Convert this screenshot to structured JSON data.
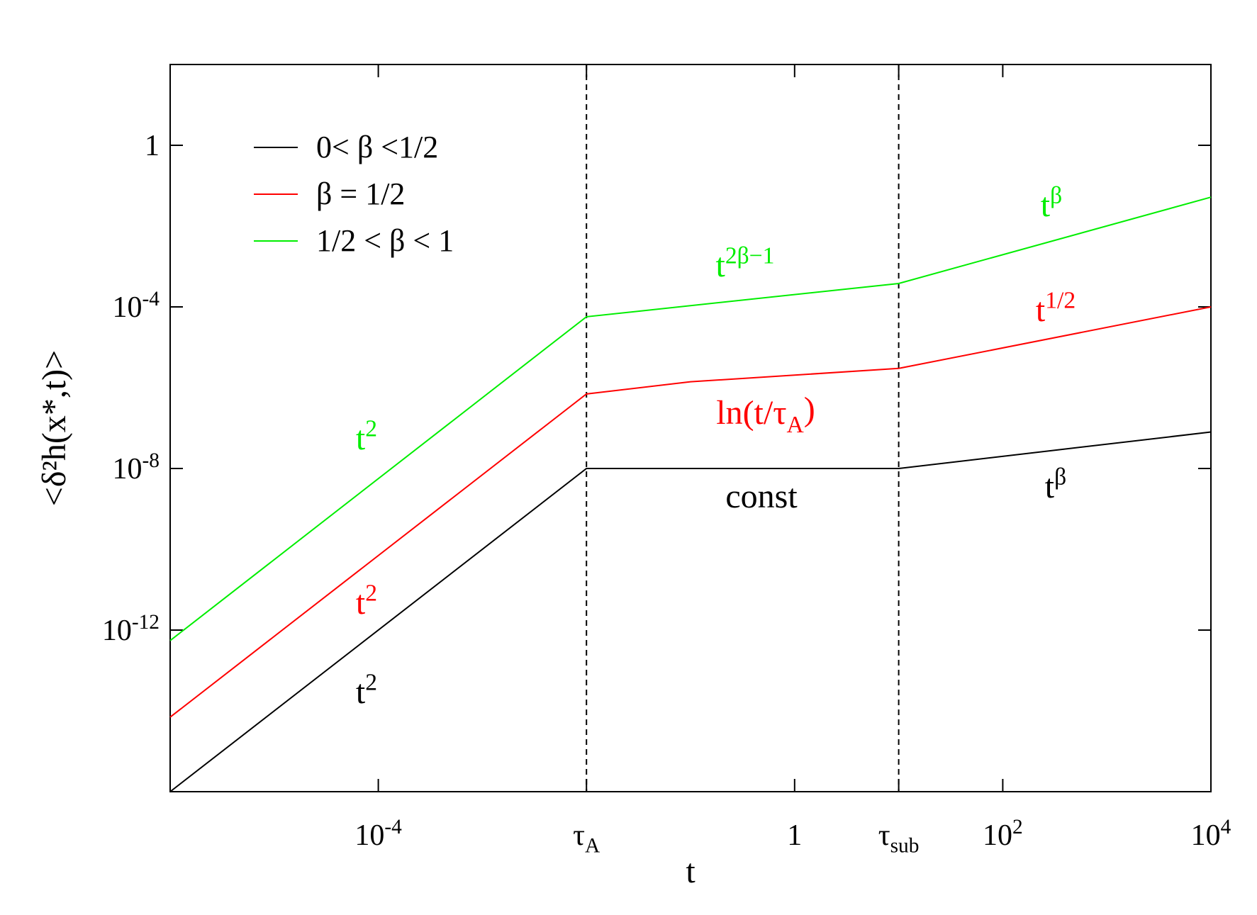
{
  "chart_data": {
    "type": "line",
    "x_label": "t",
    "y_label": "<δ²h(x*,t)>",
    "xlog": true,
    "ylog": true,
    "xlim": [
      1e-06,
      10000.0
    ],
    "ylim": [
      1e-16,
      100
    ],
    "xticks": [
      {
        "value": 0.0001,
        "label": "10",
        "sup": "-4"
      },
      {
        "value": 0.01,
        "label": "τ",
        "sub": "A",
        "dashed": true
      },
      1,
      {
        "value": 10,
        "label": "τ",
        "sub": "sub",
        "dashed": true
      },
      {
        "value": 100,
        "label": "10",
        "sup": "2"
      },
      {
        "value": 10000,
        "label": "10",
        "sup": "4"
      }
    ],
    "yticks": [
      {
        "value": 1e-12,
        "label": "10",
        "sup": "-12"
      },
      {
        "value": 1e-08,
        "label": "10",
        "sup": "-8"
      },
      {
        "value": 0.0001,
        "label": "10",
        "sup": "-4"
      },
      1
    ],
    "legend": "upper left",
    "series": [
      {
        "name": "0< β <1/2",
        "color": "#000000",
        "x": [
          1e-06,
          0.01,
          10,
          10000
        ],
        "values": [
          1e-16,
          1e-08,
          1e-08,
          8e-08
        ]
      },
      {
        "name": "β = 1/2",
        "color": "#ff0000",
        "x": [
          1e-06,
          0.01,
          0.1,
          10,
          10000
        ],
        "values": [
          7e-15,
          7e-07,
          1.4e-06,
          3e-06,
          0.0001
        ]
      },
      {
        "name": "1/2 < β < 1",
        "color": "#00ee00",
        "x": [
          1e-06,
          0.01,
          10,
          10000
        ],
        "values": [
          5.5e-13,
          5.7e-05,
          0.00038,
          0.052
        ]
      }
    ],
    "annotations": [
      {
        "text": "t",
        "sup": "2",
        "color": "#00ee00"
      },
      {
        "text": "t",
        "sup": "2",
        "color": "#ff0000"
      },
      {
        "text": "t",
        "sup": "2",
        "color": "#000000"
      },
      {
        "text": "t",
        "sup": "2β−1",
        "color": "#00ee00"
      },
      {
        "text": "t",
        "sup": "β",
        "color": "#00ee00"
      },
      {
        "text": "t",
        "sup": "1/2",
        "color": "#ff0000"
      },
      {
        "text": "ln(t/τ",
        "sub": "A",
        "tail": ")",
        "color": "#ff0000"
      },
      {
        "text": "const",
        "color": "#000000"
      },
      {
        "text": "t",
        "sup": "β",
        "color": "#000000"
      }
    ]
  }
}
